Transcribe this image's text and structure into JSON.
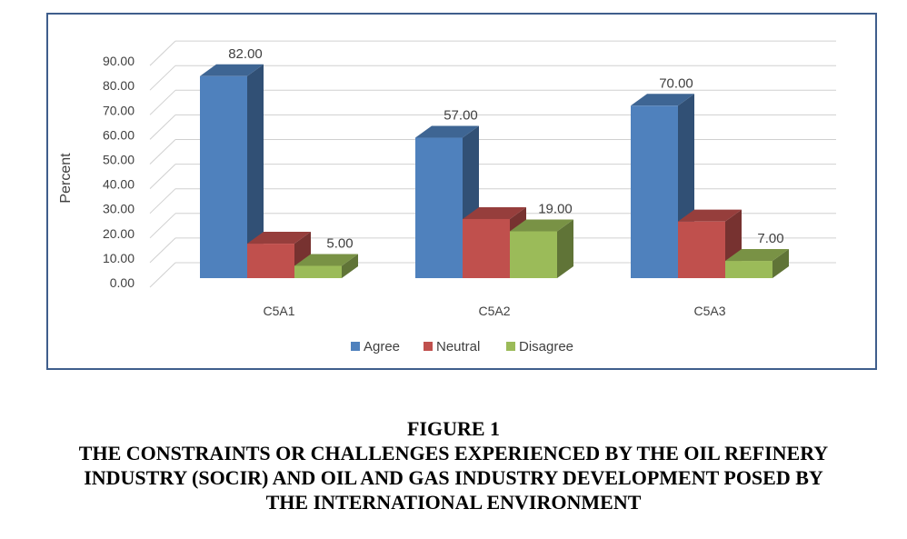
{
  "chart_data": {
    "type": "bar",
    "ylabel": "Percent",
    "categories": [
      "C5A1",
      "C5A2",
      "C5A3"
    ],
    "series": [
      {
        "name": "Agree",
        "values": [
          82.0,
          57.0,
          70.0
        ],
        "color": "#4f81bd"
      },
      {
        "name": "Neutral",
        "values": [
          14.0,
          24.0,
          23.0
        ],
        "color": "#c0504d"
      },
      {
        "name": "Disagree",
        "values": [
          5.0,
          19.0,
          7.0
        ],
        "color": "#9bbb59"
      }
    ],
    "data_labels": [
      {
        "series": 0,
        "category": 0,
        "text": "82.00"
      },
      {
        "series": 2,
        "category": 0,
        "text": "5.00"
      },
      {
        "series": 0,
        "category": 1,
        "text": "57.00"
      },
      {
        "series": 2,
        "category": 1,
        "text": "19.00"
      },
      {
        "series": 0,
        "category": 2,
        "text": "70.00"
      },
      {
        "series": 2,
        "category": 2,
        "text": "7.00"
      }
    ],
    "ylim": [
      0,
      90
    ],
    "yticks": [
      "0.00",
      "10.00",
      "20.00",
      "30.00",
      "40.00",
      "50.00",
      "60.00",
      "70.00",
      "80.00",
      "90.00"
    ],
    "grid": true,
    "legend_position": "bottom",
    "style": "3d-clustered-column"
  },
  "caption": {
    "line1": "FIGURE 1",
    "line2": "THE CONSTRAINTS OR CHALLENGES EXPERIENCED BY THE OIL REFINERY",
    "line3": "INDUSTRY (SOCIR) AND OIL AND GAS INDUSTRY DEVELOPMENT POSED BY",
    "line4": "THE INTERNATIONAL ENVIRONMENT"
  }
}
